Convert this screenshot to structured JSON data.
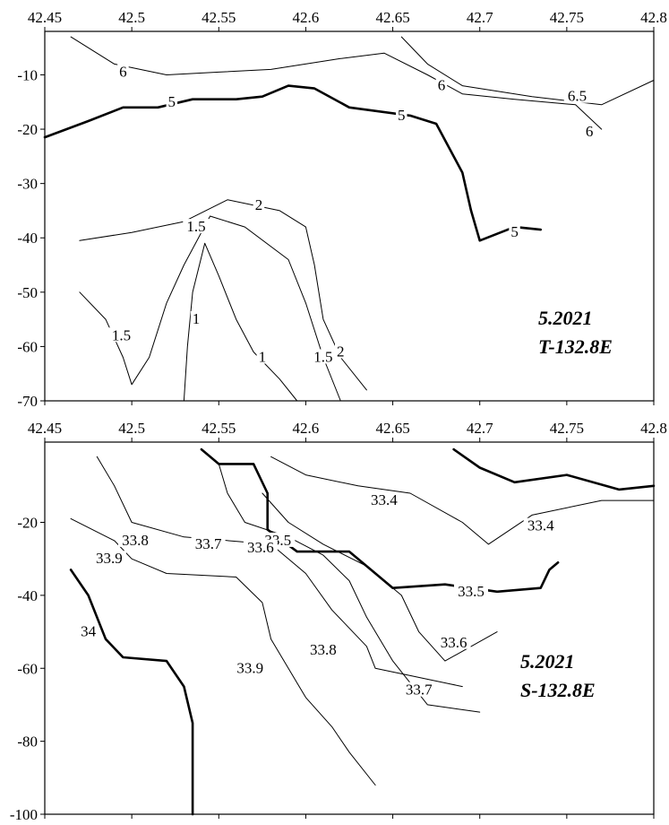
{
  "chart_data": [
    {
      "type": "contour",
      "title_line1": "5.2021",
      "title_line2": "T-132.8E",
      "xlim": [
        42.45,
        42.8
      ],
      "ylim": [
        -70,
        -2
      ],
      "x_ticks": [
        42.45,
        42.5,
        42.55,
        42.6,
        42.65,
        42.7,
        42.75,
        42.8
      ],
      "x_tick_labels": [
        "42.45",
        "42.5",
        "42.55",
        "42.6",
        "42.65",
        "42.7",
        "42.75",
        "42.8"
      ],
      "y_ticks": [
        -10,
        -20,
        -30,
        -40,
        -50,
        -60,
        -70
      ],
      "y_tick_labels": [
        "-10",
        "-20",
        "-30",
        "-40",
        "-50",
        "-60",
        "-70"
      ],
      "contours": [
        {
          "level": "6",
          "bold": false,
          "points": [
            [
              42.465,
              -3
            ],
            [
              42.49,
              -8
            ],
            [
              42.52,
              -10
            ],
            [
              42.55,
              -9.5
            ],
            [
              42.58,
              -9
            ],
            [
              42.62,
              -7
            ],
            [
              42.645,
              -6
            ],
            [
              42.67,
              -10
            ],
            [
              42.69,
              -13.5
            ],
            [
              42.72,
              -14.5
            ],
            [
              42.755,
              -15.5
            ],
            [
              42.77,
              -20
            ]
          ]
        },
        {
          "level": "5",
          "bold": true,
          "points": [
            [
              42.45,
              -21.5
            ],
            [
              42.475,
              -18.5
            ],
            [
              42.495,
              -16
            ],
            [
              42.515,
              -16
            ],
            [
              42.535,
              -14.5
            ],
            [
              42.56,
              -14.5
            ],
            [
              42.575,
              -14
            ],
            [
              42.59,
              -12
            ],
            [
              42.605,
              -12.5
            ],
            [
              42.625,
              -16
            ],
            [
              42.66,
              -17.5
            ],
            [
              42.675,
              -19
            ],
            [
              42.69,
              -28
            ],
            [
              42.695,
              -35
            ],
            [
              42.7,
              -40.5
            ],
            [
              42.72,
              -38
            ],
            [
              42.735,
              -38.5
            ]
          ]
        },
        {
          "level": "1.5",
          "bold": false,
          "points": [
            [
              42.47,
              -50
            ],
            [
              42.485,
              -55
            ],
            [
              42.495,
              -62
            ],
            [
              42.5,
              -67
            ],
            [
              42.51,
              -62
            ],
            [
              42.52,
              -52
            ],
            [
              42.53,
              -45
            ],
            [
              42.545,
              -36
            ],
            [
              42.565,
              -38
            ],
            [
              42.59,
              -44
            ],
            [
              42.6,
              -52
            ],
            [
              42.61,
              -62
            ],
            [
              42.62,
              -70
            ]
          ]
        },
        {
          "level": "1",
          "bold": false,
          "points": [
            [
              42.53,
              -70
            ],
            [
              42.532,
              -60
            ],
            [
              42.535,
              -50
            ],
            [
              42.542,
              -41
            ],
            [
              42.55,
              -47
            ],
            [
              42.56,
              -55
            ],
            [
              42.57,
              -61
            ],
            [
              42.585,
              -66
            ],
            [
              42.595,
              -70
            ]
          ]
        },
        {
          "level": "2",
          "bold": false,
          "points": [
            [
              42.47,
              -40.5
            ],
            [
              42.5,
              -39
            ],
            [
              42.53,
              -37
            ],
            [
              42.555,
              -33
            ],
            [
              42.585,
              -35
            ],
            [
              42.6,
              -38
            ],
            [
              42.605,
              -45
            ],
            [
              42.61,
              -55
            ],
            [
              42.62,
              -62
            ],
            [
              42.635,
              -68
            ]
          ]
        },
        {
          "level": "6.5",
          "bold": false,
          "points": [
            [
              42.655,
              -3
            ],
            [
              42.67,
              -8
            ],
            [
              42.69,
              -12
            ],
            [
              42.73,
              -14
            ],
            [
              42.77,
              -15.5
            ],
            [
              42.8,
              -11
            ]
          ]
        }
      ],
      "labels": [
        {
          "text": "6",
          "x": 42.495,
          "y": -9.5
        },
        {
          "text": "5",
          "x": 42.523,
          "y": -15
        },
        {
          "text": "5",
          "x": 42.655,
          "y": -17.5
        },
        {
          "text": "5",
          "x": 42.72,
          "y": -39
        },
        {
          "text": "6",
          "x": 42.678,
          "y": -12
        },
        {
          "text": "6.5",
          "x": 42.756,
          "y": -14
        },
        {
          "text": "6",
          "x": 42.763,
          "y": -20.5
        },
        {
          "text": "1.5",
          "x": 42.537,
          "y": -38
        },
        {
          "text": "2",
          "x": 42.573,
          "y": -34
        },
        {
          "text": "1.5",
          "x": 42.494,
          "y": -58
        },
        {
          "text": "1",
          "x": 42.537,
          "y": -55
        },
        {
          "text": "1",
          "x": 42.575,
          "y": -62
        },
        {
          "text": "1.5",
          "x": 42.61,
          "y": -62
        },
        {
          "text": "2",
          "x": 42.62,
          "y": -61
        }
      ]
    },
    {
      "type": "contour",
      "title_line1": "5.2021",
      "title_line2": "S-132.8E",
      "xlim": [
        42.45,
        42.8
      ],
      "ylim": [
        -100,
        2
      ],
      "x_ticks": [
        42.45,
        42.5,
        42.55,
        42.6,
        42.65,
        42.7,
        42.75,
        42.8
      ],
      "x_tick_labels": [
        "42.45",
        "42.5",
        "42.55",
        "42.6",
        "42.65",
        "42.7",
        "42.75",
        "42.8"
      ],
      "y_ticks": [
        -20,
        -40,
        -60,
        -80,
        -100
      ],
      "y_tick_labels": [
        "-20",
        "-40",
        "-60",
        "-80",
        "-100"
      ],
      "contours": [
        {
          "level": "34",
          "bold": true,
          "points": [
            [
              42.465,
              -33
            ],
            [
              42.475,
              -40
            ],
            [
              42.485,
              -52
            ],
            [
              42.495,
              -57
            ],
            [
              42.52,
              -58
            ],
            [
              42.53,
              -65
            ],
            [
              42.535,
              -75
            ],
            [
              42.535,
              -85
            ],
            [
              42.535,
              -100
            ]
          ]
        },
        {
          "level": "33.9",
          "bold": false,
          "points": [
            [
              42.465,
              -19
            ],
            [
              42.49,
              -25
            ],
            [
              42.5,
              -30
            ],
            [
              42.52,
              -34
            ],
            [
              42.56,
              -35
            ],
            [
              42.575,
              -42
            ],
            [
              42.58,
              -52
            ],
            [
              42.59,
              -60
            ],
            [
              42.6,
              -68
            ],
            [
              42.615,
              -76
            ],
            [
              42.625,
              -83
            ],
            [
              42.64,
              -92
            ]
          ]
        },
        {
          "level": "33.8",
          "bold": false,
          "points": [
            [
              42.48,
              -2
            ],
            [
              42.49,
              -10
            ],
            [
              42.5,
              -20
            ],
            [
              42.53,
              -24
            ],
            [
              42.58,
              -26
            ],
            [
              42.6,
              -34
            ],
            [
              42.615,
              -44
            ],
            [
              42.635,
              -54
            ],
            [
              42.64,
              -60
            ],
            [
              42.66,
              -62
            ],
            [
              42.69,
              -65
            ]
          ]
        },
        {
          "level": "33.7",
          "bold": false,
          "points": [
            [
              42.55,
              -4
            ],
            [
              42.555,
              -12
            ],
            [
              42.565,
              -20
            ],
            [
              42.59,
              -24
            ],
            [
              42.61,
              -29
            ],
            [
              42.625,
              -36
            ],
            [
              42.635,
              -46
            ],
            [
              42.65,
              -58
            ],
            [
              42.67,
              -70
            ],
            [
              42.7,
              -72
            ]
          ]
        },
        {
          "level": "33.6",
          "bold": false,
          "points": [
            [
              42.575,
              -12
            ],
            [
              42.59,
              -20
            ],
            [
              42.61,
              -26
            ],
            [
              42.635,
              -32
            ],
            [
              42.655,
              -40
            ],
            [
              42.665,
              -50
            ],
            [
              42.68,
              -58
            ],
            [
              42.71,
              -50
            ]
          ]
        },
        {
          "level": "33.5",
          "bold": true,
          "points": [
            [
              42.54,
              0
            ],
            [
              42.55,
              -4
            ],
            [
              42.57,
              -4
            ],
            [
              42.578,
              -12
            ],
            [
              42.578,
              -22
            ],
            [
              42.595,
              -28
            ],
            [
              42.625,
              -28
            ],
            [
              42.65,
              -38
            ],
            [
              42.68,
              -37
            ],
            [
              42.71,
              -39
            ],
            [
              42.735,
              -38
            ],
            [
              42.74,
              -33
            ],
            [
              42.745,
              -31
            ]
          ]
        },
        {
          "level": "33.4",
          "bold": false,
          "points": [
            [
              42.58,
              -2
            ],
            [
              42.6,
              -7
            ],
            [
              42.63,
              -10
            ],
            [
              42.66,
              -12
            ],
            [
              42.69,
              -20
            ],
            [
              42.705,
              -26
            ],
            [
              42.73,
              -18
            ],
            [
              42.77,
              -14
            ],
            [
              42.8,
              -14
            ]
          ]
        },
        {
          "level": "",
          "bold": true,
          "points": [
            [
              42.685,
              0
            ],
            [
              42.7,
              -5
            ],
            [
              42.72,
              -9
            ],
            [
              42.75,
              -7
            ],
            [
              42.78,
              -11
            ],
            [
              42.8,
              -10
            ]
          ]
        }
      ],
      "labels": [
        {
          "text": "33.4",
          "x": 42.645,
          "y": -14
        },
        {
          "text": "33.4",
          "x": 42.735,
          "y": -21
        },
        {
          "text": "33.5",
          "x": 42.584,
          "y": -25
        },
        {
          "text": "33.5",
          "x": 42.695,
          "y": -39
        },
        {
          "text": "33.6",
          "x": 42.574,
          "y": -27
        },
        {
          "text": "33.6",
          "x": 42.685,
          "y": -53
        },
        {
          "text": "33.7",
          "x": 42.544,
          "y": -26
        },
        {
          "text": "33.7",
          "x": 42.665,
          "y": -66
        },
        {
          "text": "33.8",
          "x": 42.502,
          "y": -25
        },
        {
          "text": "33.8",
          "x": 42.61,
          "y": -55
        },
        {
          "text": "33.9",
          "x": 42.487,
          "y": -30
        },
        {
          "text": "33.9",
          "x": 42.568,
          "y": -60
        },
        {
          "text": "34",
          "x": 42.475,
          "y": -50
        }
      ]
    }
  ]
}
